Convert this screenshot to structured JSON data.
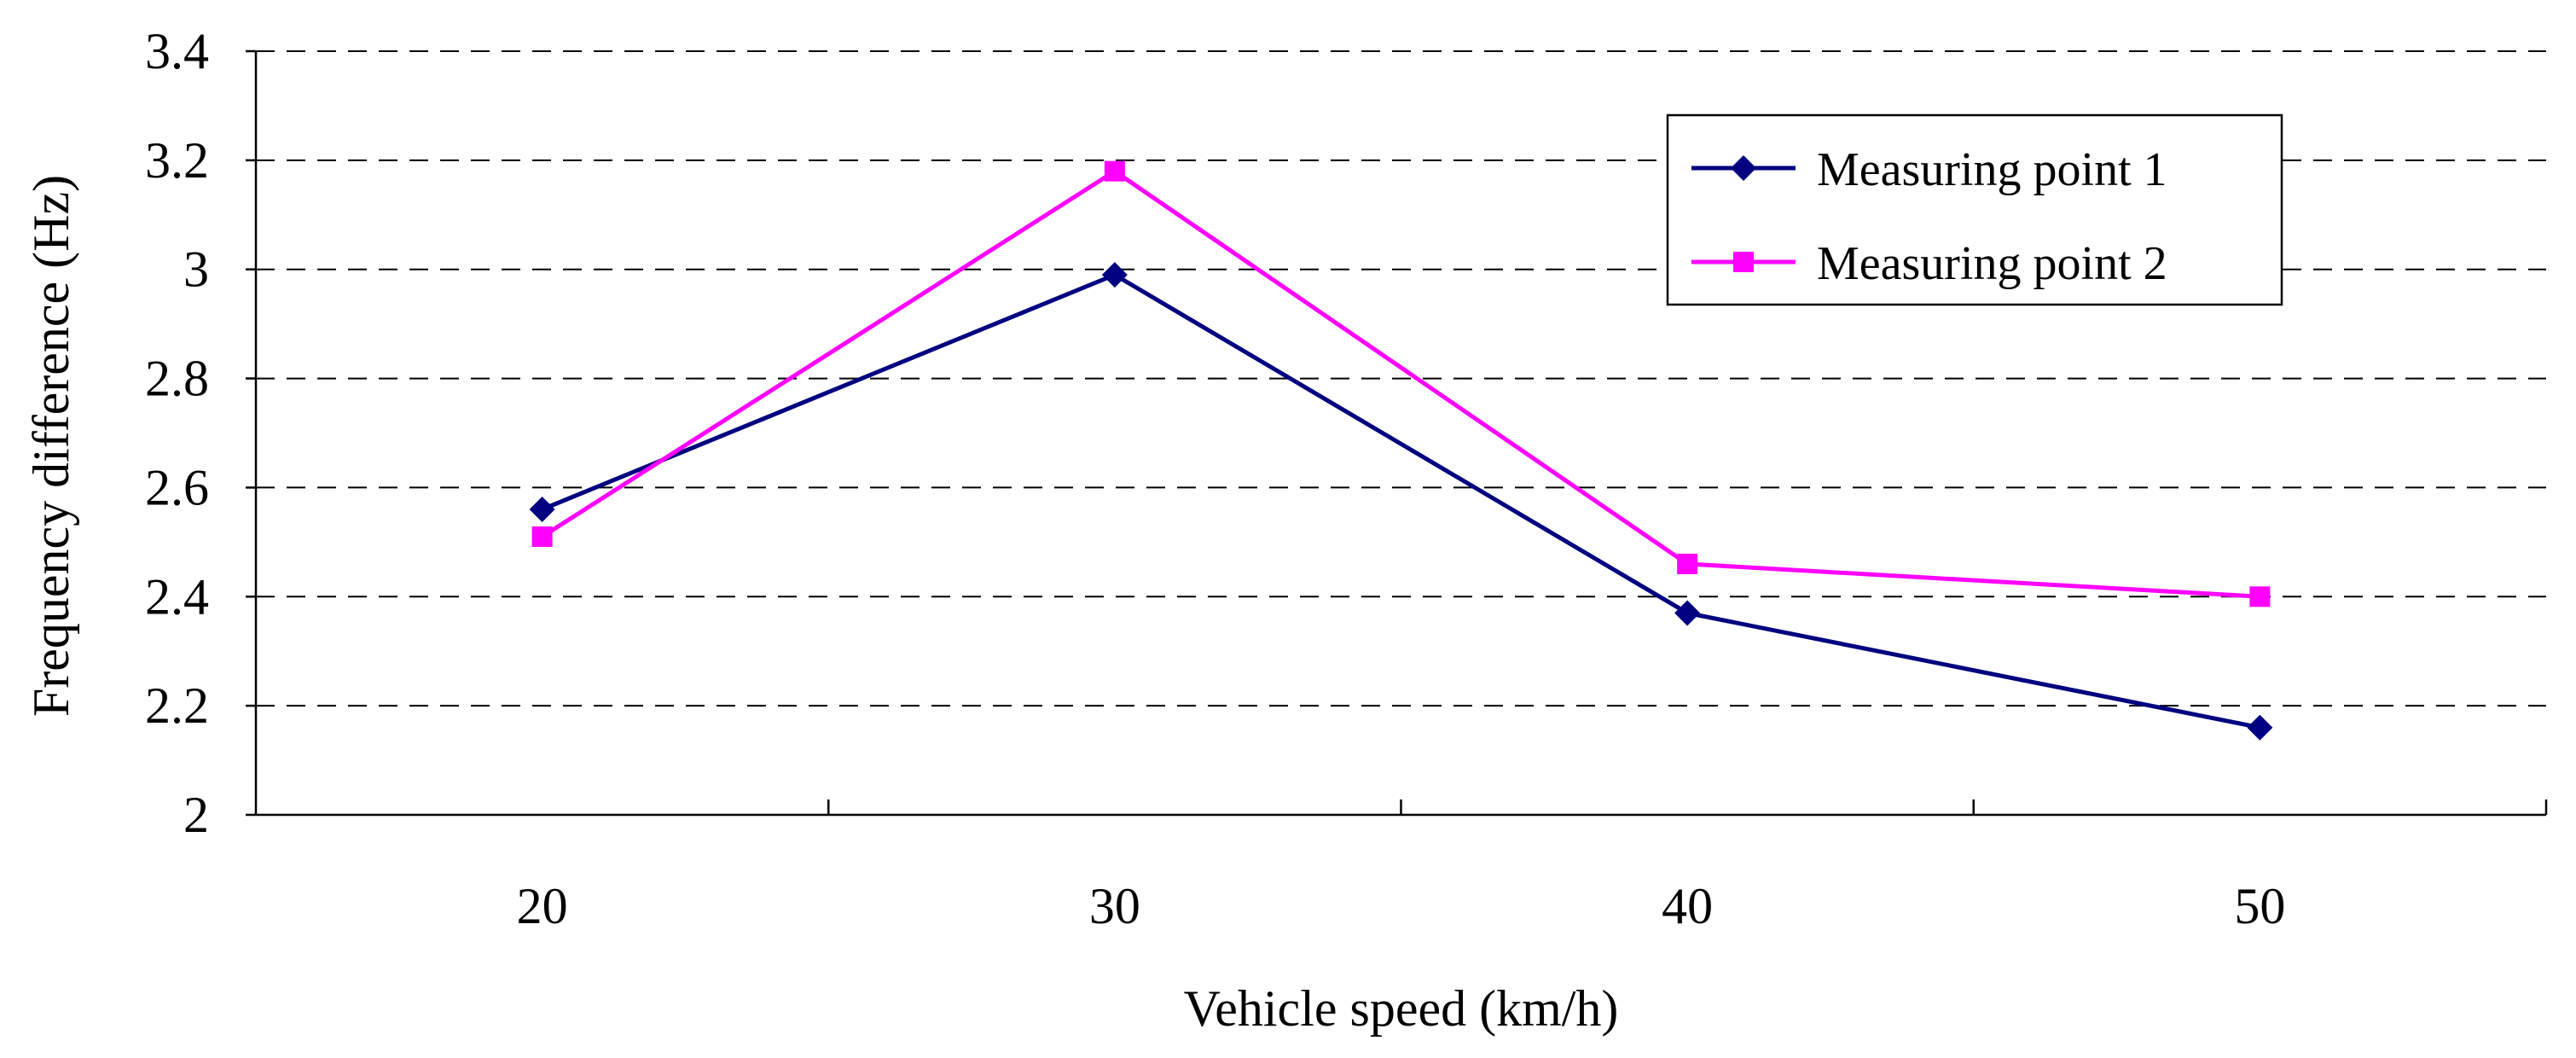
{
  "chart_data": {
    "type": "line",
    "title": "",
    "xlabel": "Vehicle speed (km/h)",
    "ylabel": "Frequency difference (Hz)",
    "categories": [
      "20",
      "30",
      "40",
      "50"
    ],
    "ylim": [
      2,
      3.4
    ],
    "yticks": [
      "2",
      "2.2",
      "2.4",
      "2.6",
      "2.8",
      "3",
      "3.2",
      "3.4"
    ],
    "grid": true,
    "legend_position": "top-right",
    "series": [
      {
        "name": "Measuring point 1",
        "values": [
          2.56,
          2.99,
          2.37,
          2.16
        ],
        "color": "#000080",
        "marker": "diamond"
      },
      {
        "name": "Measuring point 2",
        "values": [
          2.51,
          3.18,
          2.46,
          2.4
        ],
        "color": "#FF00FF",
        "marker": "square"
      }
    ]
  }
}
